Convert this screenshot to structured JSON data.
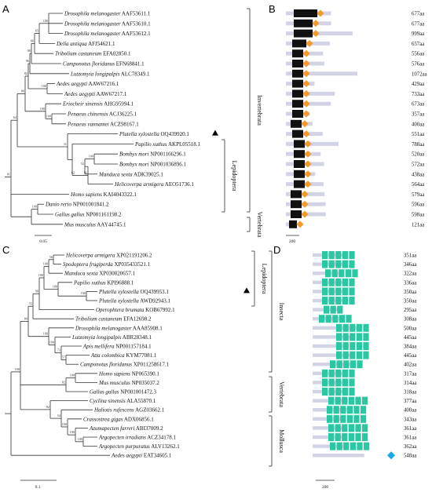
{
  "panels": {
    "A": {
      "letter": "A",
      "scale_label": "0.05",
      "group_labels": [
        "Invertebrata",
        "Lepidoptera",
        "Vertebrata"
      ],
      "taxa": [
        {
          "species": "Drosophila melanogaster",
          "acc": "AAF53611.1"
        },
        {
          "species": "Drosophila melanogaster",
          "acc": "AAF53610.1"
        },
        {
          "species": "Drosophila melanogaster",
          "acc": "AAF53612.1"
        },
        {
          "species": "Delia antiqua",
          "acc": "AFJ54621.1"
        },
        {
          "species": "Tribolium castaneum",
          "acc": "EFA02850.1"
        },
        {
          "species": "Camponotus floridanus",
          "acc": "EFN68841.1"
        },
        {
          "species": "Lutzomyia longipalpis",
          "acc": "ALC78349.1"
        },
        {
          "species": "Aedes aegypti",
          "acc": "AAW67216.1"
        },
        {
          "species": "Aedes aegypti",
          "acc": "AAW67217.1"
        },
        {
          "species": "Eriocheir sinensis",
          "acc": "AHG95994.1"
        },
        {
          "species": "Penaeus chinensis",
          "acc": "ACJ36225.1"
        },
        {
          "species": "Penaeus vannamei",
          "acc": "ACZ98167.1"
        },
        {
          "species": "Plutella xylostella",
          "acc": "OQ439920.1"
        },
        {
          "species": "Papilio xuthus",
          "acc": "AKPL05518.1"
        },
        {
          "species": "Bombyx mori",
          "acc": "NP001166296.1"
        },
        {
          "species": "Bombyx mori",
          "acc": "NP001036896.1"
        },
        {
          "species": "Manduca sexta",
          "acc": "ADK39025.1"
        },
        {
          "species": "Helicoverpa armigera",
          "acc": "AEO51736.1"
        },
        {
          "species": "Homo sapiens",
          "acc": "KAI4043322.1"
        },
        {
          "species": "Danio rerio",
          "acc": "NP001001841.2"
        },
        {
          "species": "Gallus gallus",
          "acc": "NP001161198.2"
        },
        {
          "species": "Mus musculus",
          "acc": "AAY44745.1"
        }
      ],
      "bootstraps": [
        "100",
        "65",
        "66",
        "98",
        "96",
        "82",
        "100",
        "100",
        "81",
        "100",
        "100",
        "80",
        "31",
        "62",
        "100",
        "52",
        "91",
        "64",
        "100"
      ]
    },
    "B": {
      "letter": "B",
      "scale_label": "200",
      "lengths": [
        "677aa",
        "677aa",
        "999aa",
        "657aa",
        "556aa",
        "576aa",
        "1072aa",
        "429aa",
        "733aa",
        "673aa",
        "357aa",
        "400aa",
        "551aa",
        "788aa",
        "520aa",
        "572aa",
        "438aa",
        "564aa",
        "579aa",
        "596aa",
        "598aa",
        "121aa"
      ]
    },
    "C": {
      "letter": "C",
      "scale_label": "0.1",
      "group_labels": [
        "Lepidoptera",
        "Insecta",
        "Vertebrata",
        "Mollusca"
      ],
      "taxa": [
        {
          "species": "Helicoverpa armigera",
          "acc": "XP021191206.2"
        },
        {
          "species": "Spodoptera frugiperda",
          "acc": "XP035433521.1"
        },
        {
          "species": "Manduca sexta",
          "acc": "XP030020657.1"
        },
        {
          "species": "Papilio xuthus",
          "acc": "KPI96888.1"
        },
        {
          "species": "Plutella xylostella",
          "acc": "OQ439953.1"
        },
        {
          "species": "Plutella xylostella",
          "acc": "AWD92943.1"
        },
        {
          "species": "Operophtera brumata",
          "acc": "KOB67992.1"
        },
        {
          "species": "Tribolium castaneum",
          "acc": "EFA12698.2"
        },
        {
          "species": "Drosophila melanogaster",
          "acc": "AAA85908.1"
        },
        {
          "species": "Lutzomyia longipalpis",
          "acc": "ABR28348.1"
        },
        {
          "species": "Apis mellifera",
          "acc": "NP001157184.1"
        },
        {
          "species": "Atta colombica",
          "acc": "KYM77081.1"
        },
        {
          "species": "Camponotus floridanus",
          "acc": "XP011258617.1"
        },
        {
          "species": "Homo sapiens",
          "acc": "NP065390.1"
        },
        {
          "species": "Mus musculus",
          "acc": "NP035037.2"
        },
        {
          "species": "Gallus gallus",
          "acc": "NP001001472.3"
        },
        {
          "species": "Cyclina sinensis",
          "acc": "ALA55870.1"
        },
        {
          "species": "Haliotis rufescens",
          "acc": "AGZ03662.1"
        },
        {
          "species": "Crassostrea gigas",
          "acc": "ADX06856.1"
        },
        {
          "species": "Azumapecten farreri",
          "acc": "ABI37009.2"
        },
        {
          "species": "Argopecten irradians",
          "acc": "ACZ34178.1"
        },
        {
          "species": "Argopecten purpuratus",
          "acc": "ALV13262.1"
        },
        {
          "species": "Aedes aegypti",
          "acc": "EAT34605.1"
        }
      ],
      "bootstraps": [
        "56",
        "100",
        "100",
        "100",
        "100",
        "98",
        "55",
        "57",
        "73",
        "100",
        "100",
        "84",
        "100",
        "82",
        "100",
        "100",
        "100",
        "54",
        "92",
        "100"
      ]
    },
    "D": {
      "letter": "D",
      "scale_label": "200",
      "lengths": [
        "351aa",
        "346aa",
        "322aa",
        "336aa",
        "350aa",
        "350aa",
        "295aa",
        "308aa",
        "500aa",
        "445aa",
        "384aa",
        "445aa",
        "402aa",
        "317aa",
        "314aa",
        "318aa",
        "377aa",
        "400aa",
        "343aa",
        "361aa",
        "361aa",
        "362aa",
        "548aa"
      ]
    }
  },
  "colors": {
    "motif_black": "#111111",
    "motif_orange": "#f39a2a",
    "motif_teal": "#29c7a2",
    "motif_cyan": "#19a9e6",
    "protein_bar": "#d3d3e6",
    "line": "#333333"
  }
}
